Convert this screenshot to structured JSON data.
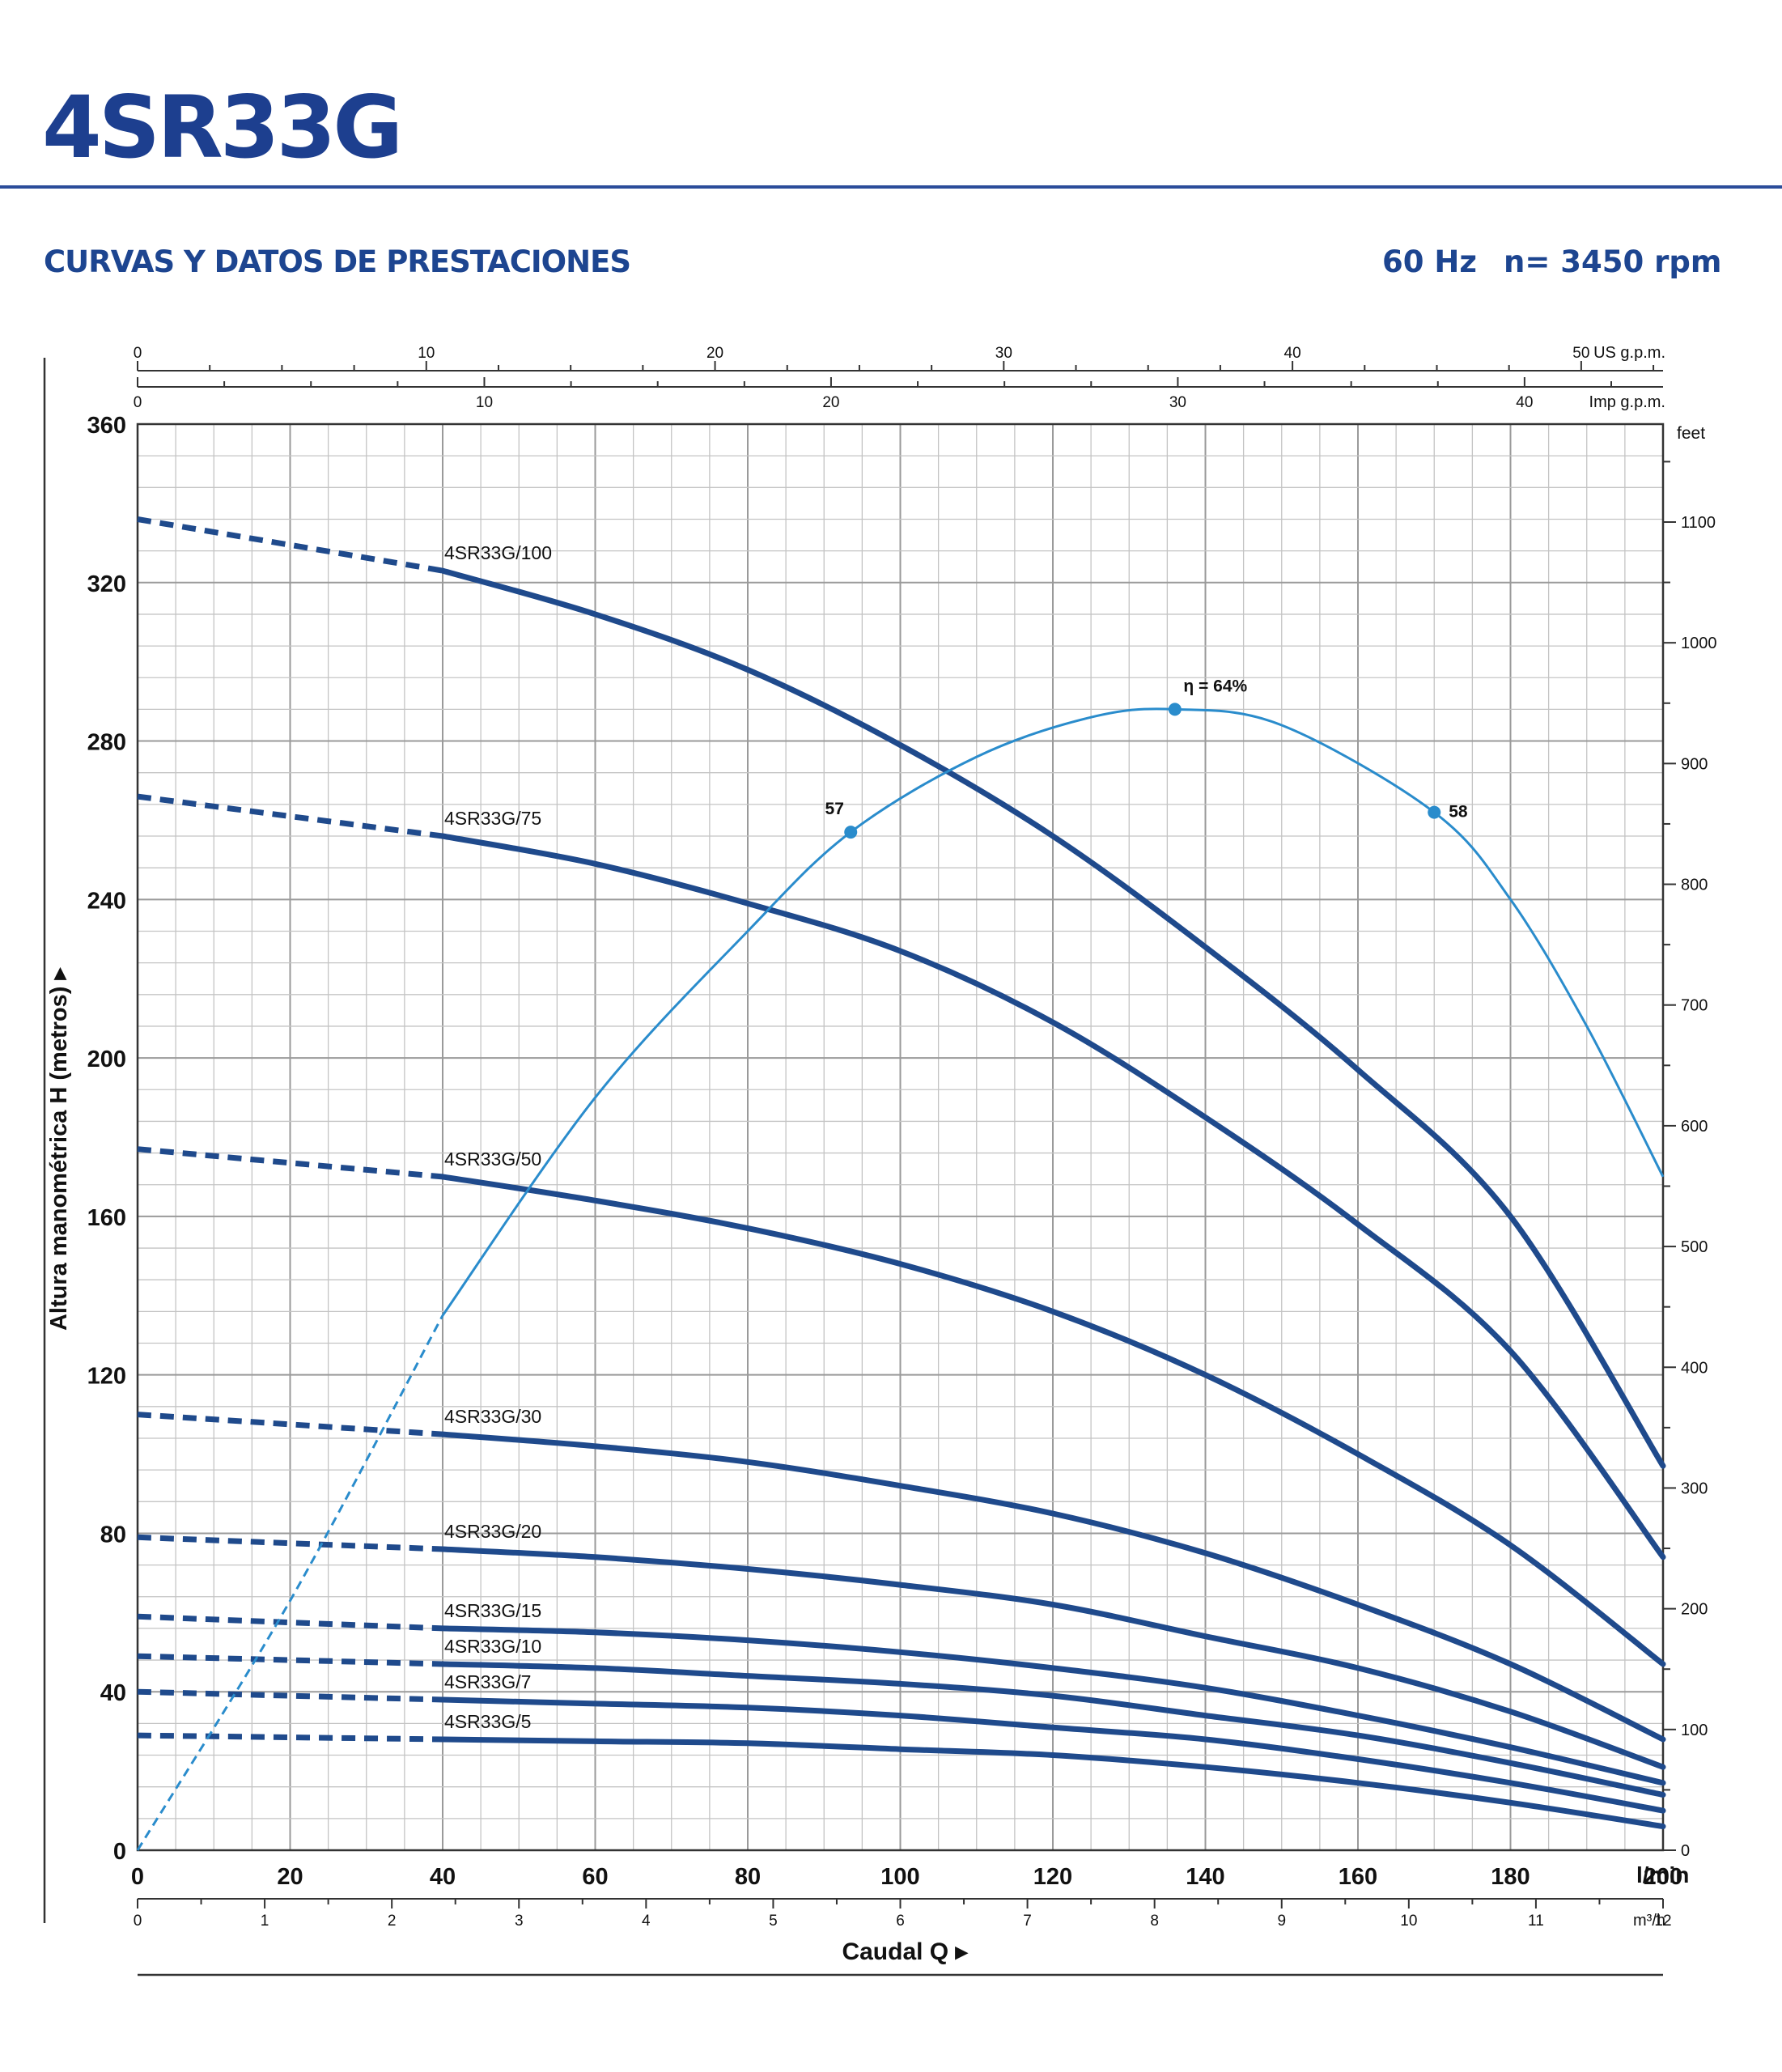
{
  "header": {
    "model": "4SR33G",
    "subtitle": "CURVAS Y DATOS DE PRESTACIONES",
    "frequency": "60 Hz",
    "speed": "n= 3450 rpm"
  },
  "colors": {
    "accent": "#1d4590",
    "curve": "#1f4a8c",
    "efficiency": "#2a8ccc"
  },
  "chart_data": {
    "type": "line",
    "grid": true,
    "xlabel": "Caudal Q",
    "ylabel": "Altura manométrica H (metros)",
    "x_unit": "l/min",
    "xlim": [
      0,
      200
    ],
    "ylim": [
      0,
      360
    ],
    "x_ticks": [
      0,
      20,
      40,
      60,
      80,
      100,
      120,
      140,
      160,
      180,
      200
    ],
    "y_ticks": [
      0,
      40,
      80,
      120,
      160,
      200,
      240,
      280,
      320,
      360
    ],
    "secondary_axes": {
      "us_gpm": {
        "unit": "US g.p.m.",
        "ticks": [
          0,
          10,
          20,
          30,
          40,
          50
        ]
      },
      "imp_gpm": {
        "unit": "Imp g.p.m.",
        "ticks": [
          0,
          10,
          20,
          30,
          40
        ]
      },
      "m3h": {
        "unit": "m³/h",
        "ticks": [
          0,
          1,
          2,
          3,
          4,
          5,
          6,
          7,
          8,
          9,
          10,
          11,
          12
        ]
      },
      "feet": {
        "unit": "feet",
        "ticks": [
          0,
          100,
          200,
          300,
          400,
          500,
          600,
          700,
          800,
          900,
          1000,
          1100
        ]
      }
    },
    "series": [
      {
        "name": "4SR33G/100",
        "dashed_below_x": 40,
        "x": [
          0,
          40,
          60,
          80,
          100,
          120,
          140,
          160,
          180,
          200
        ],
        "y": [
          336,
          323,
          312,
          298,
          279,
          256,
          228,
          197,
          160,
          97
        ]
      },
      {
        "name": "4SR33G/75",
        "dashed_below_x": 40,
        "x": [
          0,
          40,
          60,
          80,
          100,
          120,
          140,
          160,
          180,
          200
        ],
        "y": [
          266,
          256,
          249,
          239,
          227,
          209,
          185,
          158,
          126,
          74
        ]
      },
      {
        "name": "4SR33G/50",
        "dashed_below_x": 40,
        "x": [
          0,
          40,
          60,
          80,
          100,
          120,
          140,
          160,
          180,
          200
        ],
        "y": [
          177,
          170,
          164,
          157,
          148,
          136,
          120,
          100,
          77,
          47
        ]
      },
      {
        "name": "4SR33G/30",
        "dashed_below_x": 40,
        "x": [
          0,
          40,
          60,
          80,
          100,
          120,
          140,
          160,
          180,
          200
        ],
        "y": [
          110,
          105,
          102,
          98,
          92,
          85,
          75,
          62,
          47,
          28
        ]
      },
      {
        "name": "4SR33G/20",
        "dashed_below_x": 40,
        "x": [
          0,
          40,
          60,
          80,
          100,
          120,
          140,
          160,
          180,
          200
        ],
        "y": [
          79,
          76,
          74,
          71,
          67,
          62,
          54,
          46,
          35,
          21
        ]
      },
      {
        "name": "4SR33G/15",
        "dashed_below_x": 40,
        "x": [
          0,
          40,
          60,
          80,
          100,
          120,
          140,
          160,
          180,
          200
        ],
        "y": [
          59,
          56,
          55,
          53,
          50,
          46,
          41,
          34,
          26,
          17
        ]
      },
      {
        "name": "4SR33G/10",
        "dashed_below_x": 40,
        "x": [
          0,
          40,
          60,
          80,
          100,
          120,
          140,
          160,
          180,
          200
        ],
        "y": [
          49,
          47,
          46,
          44,
          42,
          39,
          34,
          29,
          22,
          14
        ]
      },
      {
        "name": "4SR33G/7",
        "dashed_below_x": 40,
        "x": [
          0,
          40,
          60,
          80,
          100,
          120,
          140,
          160,
          180,
          200
        ],
        "y": [
          40,
          38,
          37,
          36,
          34,
          31,
          28,
          23,
          17,
          10
        ]
      },
      {
        "name": "4SR33G/5",
        "dashed_below_x": 40,
        "x": [
          0,
          40,
          60,
          80,
          100,
          120,
          140,
          160,
          180,
          200
        ],
        "y": [
          29,
          28,
          27.5,
          27,
          25.5,
          24,
          21,
          17,
          12,
          6
        ]
      }
    ],
    "efficiency_curve": {
      "dashed_below_x": 40,
      "x": [
        0,
        20,
        40,
        60,
        80,
        93.5,
        110,
        125,
        136,
        150,
        170,
        180,
        190,
        200
      ],
      "y": [
        0,
        63,
        135,
        190,
        232,
        257,
        276,
        286,
        288,
        284,
        262,
        240,
        208,
        170
      ],
      "points": [
        {
          "label": "57",
          "x": 93.5,
          "y": 257
        },
        {
          "label": "η = 64%",
          "x": 136,
          "y": 288
        },
        {
          "label": "58",
          "x": 170,
          "y": 262
        }
      ]
    }
  }
}
